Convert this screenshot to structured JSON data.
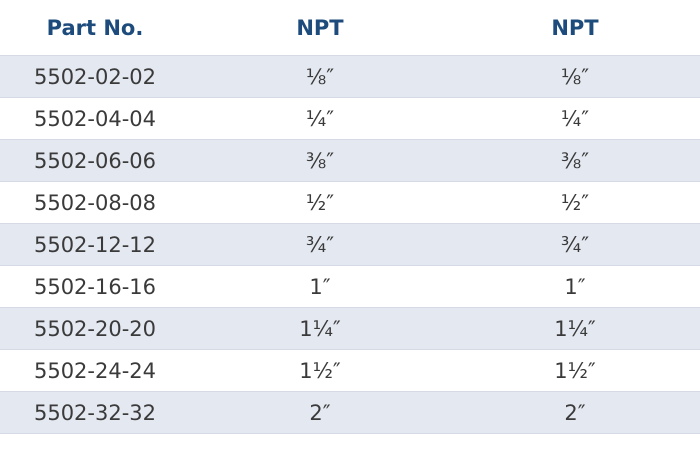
{
  "table": {
    "header": [
      "Part No.",
      "NPT",
      "NPT"
    ],
    "rows": [
      [
        "5502-02-02",
        "⅛″",
        "⅛″"
      ],
      [
        "5502-04-04",
        "¼″",
        "¼″"
      ],
      [
        "5502-06-06",
        "⅜″",
        "⅜″"
      ],
      [
        "5502-08-08",
        "½″",
        "½″"
      ],
      [
        "5502-12-12",
        "¾″",
        "¾″"
      ],
      [
        "5502-16-16",
        "1″",
        "1″"
      ],
      [
        "5502-20-20",
        "1¼″",
        "1¼″"
      ],
      [
        "5502-24-24",
        "1½″",
        "1½″"
      ],
      [
        "5502-32-32",
        "2″",
        "2″"
      ]
    ]
  }
}
